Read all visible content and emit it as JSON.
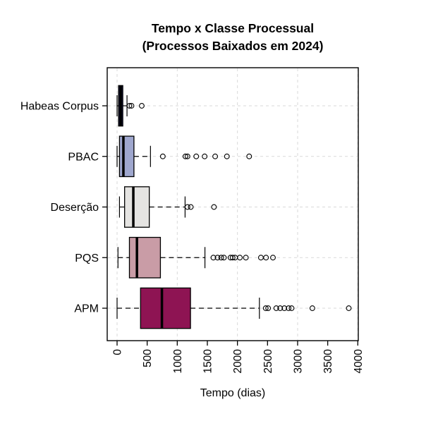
{
  "chart_data": {
    "type": "boxplot",
    "orientation": "horizontal",
    "title": "Tempo x Classe Processual",
    "subtitle": "(Processos Baixados em 2024)",
    "xlabel": "Tempo (dias)",
    "xlim": [
      0,
      4000
    ],
    "x_ticks": [
      0,
      500,
      1000,
      1500,
      2000,
      2500,
      3000,
      3500,
      4000
    ],
    "grid": {
      "style": "dashed",
      "color": "#d9d9d9",
      "x_lines": [
        0,
        1000,
        2000,
        3000,
        4000
      ],
      "y_lines": "category-centers"
    },
    "frame_color": "#000000",
    "categories_top_to_bottom": [
      "Habeas Corpus",
      "PBAC",
      "Deserção",
      "PQS",
      "APM"
    ],
    "series": [
      {
        "name": "Habeas Corpus",
        "box_color": "#191945",
        "whisker_low": 0,
        "q1": 25,
        "median": 60,
        "q3": 95,
        "whisker_high": 165,
        "outliers": [
          205,
          240,
          410
        ]
      },
      {
        "name": "PBAC",
        "box_color": "#9fa7ce",
        "whisker_low": 0,
        "q1": 40,
        "median": 105,
        "q3": 280,
        "whisker_high": 555,
        "outliers": [
          760,
          1135,
          1170,
          1315,
          1455,
          1630,
          1825,
          2195
        ]
      },
      {
        "name": "Deserção",
        "box_color": "#e5e4e2",
        "whisker_low": 40,
        "q1": 125,
        "median": 270,
        "q3": 535,
        "whisker_high": 1130,
        "outliers": [
          1170,
          1225,
          1610
        ]
      },
      {
        "name": "PQS",
        "box_color": "#c99ca6",
        "whisker_low": 15,
        "q1": 205,
        "median": 330,
        "q3": 720,
        "whisker_high": 1460,
        "outliers": [
          1600,
          1670,
          1730,
          1775,
          1885,
          1920,
          1960,
          2040,
          2140,
          2390,
          2475,
          2590
        ]
      },
      {
        "name": "APM",
        "box_color": "#8e1453",
        "whisker_low": 0,
        "q1": 390,
        "median": 745,
        "q3": 1220,
        "whisker_high": 2365,
        "outliers": [
          2470,
          2510,
          2645,
          2710,
          2780,
          2850,
          2900,
          3245,
          3850
        ]
      }
    ]
  }
}
